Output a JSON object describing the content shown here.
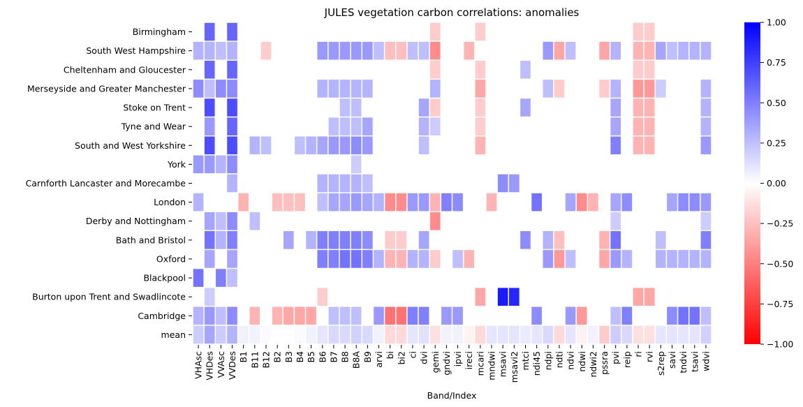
{
  "chart_data": {
    "type": "heatmap",
    "title": "JULES vegetation carbon correlations: anomalies",
    "xlabel": "Band/Index",
    "ylabel": "",
    "columns": [
      "VHAsc",
      "VHDes",
      "VVAsc",
      "VVDes",
      "B1",
      "B11",
      "B12",
      "B2",
      "B3",
      "B4",
      "B5",
      "B6",
      "B7",
      "B8",
      "B8A",
      "B9",
      "arvi",
      "bi",
      "bi2",
      "ci",
      "dvi",
      "gemi",
      "gndvi",
      "ipvi",
      "ireci",
      "mcari",
      "mndwi",
      "msavi",
      "msavi2",
      "mtci",
      "ndi45",
      "ndpi",
      "ndti",
      "ndvi",
      "ndwi",
      "ndwi2",
      "pssra",
      "pvi",
      "reip",
      "ri",
      "rvi",
      "s2rep",
      "savi",
      "tndvi",
      "tsavi",
      "wdvi"
    ],
    "x_tick_labels": [
      "VHAsc",
      "VHDes",
      "VVAsc",
      "VVDes",
      "B1",
      "B11",
      "B12",
      "B2",
      "B3",
      "B4",
      "B5",
      "B6",
      "B7",
      "B8",
      "B8A",
      "B9",
      "arvi",
      "bi",
      "bi2",
      "ci",
      "dvi",
      "gemi",
      "gndvi",
      "ipvi",
      "ireci",
      "mcari",
      "mndwi",
      "msavi",
      "msavi2",
      "mtci",
      "ndi45",
      "ndpi",
      "ndti",
      "ndvi",
      "ndwi",
      "ndwi2",
      "pssra",
      "pvi",
      "reip",
      "ri",
      "rvi",
      "s2rep",
      "savi",
      "tndvi",
      "tsavi",
      "wdvi"
    ],
    "rows": [
      "Birmingham",
      "South West Hampshire",
      "Cheltenham and Gloucester",
      "Merseyside and Greater Manchester",
      "Stoke on Trent",
      "Tyne and Wear",
      "South and West Yorkshire",
      "York",
      "Carnforth Lancaster and Morecambe",
      "London",
      "Derby and Nottingham",
      "Bath and Bristol",
      "Oxford",
      "Blackpool",
      "Burton upon Trent and Swadlincote",
      "Cambridge",
      "mean"
    ],
    "values": [
      [
        null,
        0.6,
        null,
        0.6,
        null,
        null,
        null,
        null,
        null,
        null,
        null,
        null,
        null,
        null,
        null,
        null,
        null,
        null,
        null,
        null,
        null,
        -0.2,
        null,
        null,
        null,
        -0.2,
        null,
        null,
        null,
        null,
        null,
        null,
        null,
        null,
        null,
        null,
        null,
        null,
        null,
        -0.2,
        -0.2,
        null,
        null,
        null,
        null,
        null
      ],
      [
        0.3,
        0.3,
        0.25,
        0.3,
        null,
        null,
        -0.2,
        null,
        null,
        null,
        null,
        0.4,
        0.4,
        0.4,
        0.4,
        0.4,
        0.25,
        -0.25,
        -0.25,
        0.25,
        0.25,
        -0.45,
        null,
        null,
        -0.3,
        null,
        null,
        null,
        null,
        null,
        null,
        0.4,
        -0.35,
        0.25,
        null,
        null,
        -0.35,
        0.3,
        null,
        -0.3,
        -0.3,
        0.35,
        0.25,
        0.3,
        0.3,
        0.3
      ],
      [
        null,
        0.6,
        null,
        0.6,
        null,
        null,
        null,
        null,
        null,
        null,
        null,
        null,
        null,
        null,
        null,
        null,
        null,
        null,
        null,
        null,
        null,
        -0.2,
        null,
        null,
        null,
        -0.2,
        null,
        null,
        null,
        0.25,
        null,
        null,
        null,
        null,
        null,
        null,
        null,
        null,
        null,
        -0.2,
        -0.2,
        null,
        null,
        null,
        null,
        null
      ],
      [
        0.45,
        0.25,
        0.45,
        0.45,
        null,
        null,
        null,
        null,
        null,
        null,
        null,
        0.3,
        0.3,
        0.3,
        0.3,
        0.3,
        null,
        null,
        null,
        null,
        null,
        0.3,
        null,
        null,
        null,
        -0.35,
        null,
        null,
        null,
        null,
        null,
        0.25,
        -0.2,
        null,
        null,
        null,
        -0.2,
        0.3,
        null,
        -0.4,
        -0.4,
        0.2,
        null,
        null,
        null,
        0.3
      ],
      [
        null,
        0.7,
        null,
        0.7,
        null,
        null,
        null,
        null,
        null,
        null,
        null,
        null,
        null,
        0.25,
        0.25,
        null,
        null,
        null,
        null,
        null,
        0.35,
        -0.2,
        null,
        null,
        null,
        -0.2,
        null,
        null,
        null,
        0.35,
        null,
        null,
        null,
        null,
        null,
        null,
        null,
        0.35,
        null,
        -0.3,
        -0.3,
        null,
        null,
        null,
        null,
        0.3
      ],
      [
        null,
        0.4,
        null,
        0.6,
        null,
        null,
        null,
        null,
        null,
        null,
        null,
        null,
        0.25,
        0.25,
        0.25,
        0.35,
        null,
        null,
        null,
        null,
        0.3,
        0.2,
        null,
        null,
        null,
        -0.2,
        null,
        null,
        null,
        null,
        null,
        null,
        null,
        null,
        null,
        null,
        null,
        0.35,
        null,
        -0.3,
        -0.3,
        null,
        null,
        null,
        null,
        0.3
      ],
      [
        null,
        0.7,
        null,
        0.7,
        null,
        0.3,
        0.25,
        null,
        null,
        0.25,
        0.3,
        0.35,
        0.4,
        0.4,
        0.45,
        0.4,
        null,
        null,
        null,
        null,
        0.25,
        null,
        null,
        null,
        null,
        -0.3,
        null,
        null,
        null,
        null,
        null,
        null,
        null,
        null,
        null,
        null,
        null,
        0.5,
        null,
        -0.3,
        -0.3,
        null,
        null,
        null,
        null,
        0.4
      ],
      [
        0.4,
        0.4,
        0.3,
        0.45,
        null,
        null,
        null,
        null,
        null,
        null,
        null,
        null,
        null,
        null,
        0.2,
        null,
        null,
        null,
        null,
        null,
        null,
        null,
        null,
        null,
        null,
        null,
        null,
        null,
        null,
        null,
        null,
        null,
        null,
        null,
        null,
        null,
        null,
        null,
        null,
        null,
        null,
        null,
        null,
        null,
        null,
        null
      ],
      [
        null,
        null,
        null,
        0.3,
        null,
        null,
        null,
        null,
        null,
        null,
        null,
        0.3,
        0.3,
        0.3,
        0.3,
        0.25,
        null,
        null,
        null,
        null,
        null,
        null,
        null,
        null,
        null,
        null,
        null,
        0.45,
        0.4,
        null,
        null,
        null,
        null,
        null,
        null,
        null,
        null,
        null,
        null,
        null,
        null,
        null,
        null,
        null,
        null,
        null
      ],
      [
        0.3,
        null,
        null,
        null,
        -0.3,
        null,
        null,
        -0.25,
        -0.25,
        -0.25,
        null,
        0.25,
        0.35,
        0.35,
        0.4,
        0.35,
        0.3,
        -0.45,
        -0.45,
        0.4,
        0.4,
        -0.3,
        0.5,
        0.45,
        null,
        null,
        -0.3,
        null,
        null,
        null,
        0.55,
        null,
        null,
        0.35,
        -0.45,
        -0.3,
        null,
        0.35,
        0.45,
        null,
        null,
        null,
        0.35,
        0.45,
        0.45,
        0.4
      ],
      [
        null,
        0.35,
        0.25,
        0.45,
        null,
        0.25,
        null,
        null,
        null,
        null,
        null,
        null,
        null,
        null,
        null,
        null,
        null,
        null,
        null,
        null,
        null,
        -0.45,
        null,
        null,
        null,
        null,
        null,
        null,
        null,
        null,
        null,
        null,
        null,
        null,
        null,
        null,
        null,
        0.2,
        null,
        null,
        null,
        null,
        null,
        null,
        null,
        0.2
      ],
      [
        null,
        0.55,
        0.3,
        0.5,
        null,
        null,
        null,
        null,
        0.35,
        null,
        0.3,
        0.5,
        0.5,
        0.5,
        0.5,
        0.45,
        null,
        -0.2,
        -0.2,
        null,
        0.35,
        null,
        null,
        null,
        null,
        null,
        null,
        null,
        null,
        0.45,
        null,
        0.3,
        -0.25,
        null,
        null,
        null,
        -0.3,
        0.55,
        null,
        null,
        null,
        0.25,
        null,
        null,
        null,
        0.5
      ],
      [
        null,
        0.35,
        null,
        0.35,
        null,
        null,
        null,
        null,
        null,
        null,
        null,
        0.5,
        0.5,
        0.55,
        0.55,
        0.5,
        0.3,
        -0.3,
        -0.3,
        0.3,
        0.3,
        -0.2,
        null,
        0.25,
        -0.3,
        null,
        null,
        null,
        null,
        null,
        null,
        0.4,
        -0.4,
        0.25,
        null,
        null,
        -0.35,
        0.4,
        0.3,
        null,
        null,
        0.3,
        0.3,
        0.3,
        0.3,
        0.3
      ],
      [
        0.55,
        null,
        0.5,
        0.25,
        null,
        null,
        null,
        null,
        null,
        null,
        null,
        null,
        null,
        null,
        null,
        null,
        null,
        null,
        null,
        null,
        null,
        null,
        null,
        null,
        null,
        null,
        null,
        null,
        null,
        null,
        null,
        null,
        null,
        null,
        null,
        null,
        null,
        null,
        null,
        null,
        null,
        null,
        null,
        null,
        null,
        null
      ],
      [
        null,
        0.2,
        null,
        null,
        null,
        null,
        null,
        null,
        null,
        null,
        null,
        -0.2,
        null,
        null,
        null,
        null,
        null,
        null,
        null,
        null,
        null,
        null,
        null,
        null,
        null,
        -0.35,
        null,
        0.9,
        0.85,
        null,
        null,
        null,
        null,
        null,
        null,
        null,
        null,
        null,
        null,
        -0.35,
        -0.35,
        null,
        null,
        null,
        null,
        null
      ],
      [
        0.3,
        0.4,
        0.25,
        0.45,
        null,
        -0.3,
        null,
        -0.3,
        -0.35,
        -0.35,
        -0.35,
        null,
        0.25,
        0.25,
        0.25,
        null,
        0.4,
        -0.55,
        -0.55,
        0.5,
        0.5,
        null,
        0.4,
        0.4,
        null,
        null,
        null,
        null,
        null,
        null,
        0.45,
        null,
        null,
        0.4,
        -0.4,
        null,
        null,
        0.25,
        0.5,
        null,
        null,
        null,
        0.45,
        0.55,
        0.55,
        0.25
      ],
      [
        0.2,
        0.35,
        0.2,
        0.3,
        0.05,
        0.05,
        0.02,
        0.0,
        0.0,
        0.02,
        0.05,
        0.1,
        0.15,
        0.15,
        0.18,
        0.15,
        0.05,
        -0.15,
        -0.15,
        0.1,
        0.12,
        -0.12,
        0.05,
        0.05,
        -0.05,
        -0.15,
        0.1,
        0.1,
        0.1,
        0.08,
        0.1,
        0.15,
        -0.15,
        0.1,
        -0.05,
        0.05,
        -0.2,
        0.2,
        0.15,
        -0.12,
        -0.12,
        0.1,
        0.1,
        0.1,
        0.1,
        0.18
      ]
    ],
    "vmin": -1.0,
    "vmax": 1.0,
    "colormap": [
      "#ff0000",
      "#ffffff",
      "#0000ff"
    ],
    "colorbar_ticks": [
      "1.00",
      "0.75",
      "0.50",
      "0.25",
      "0.00",
      "−0.25",
      "−0.50",
      "−0.75",
      "−1.00"
    ],
    "grid": false
  }
}
